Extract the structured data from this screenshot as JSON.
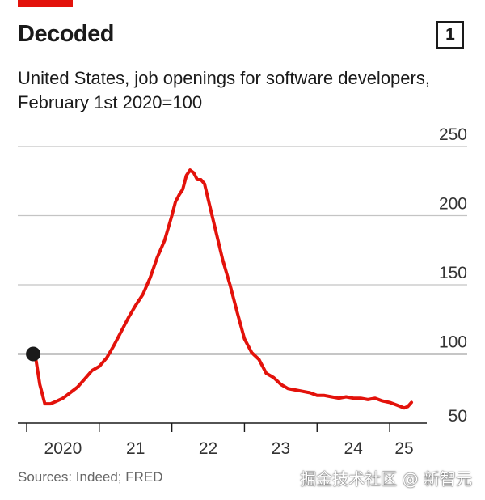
{
  "header": {
    "title": "Decoded",
    "badge": "1",
    "subtitle": "United States, job openings for software developers, February 1st 2020=100",
    "accent_color": "#e3120b"
  },
  "footer": {
    "source": "Sources: Indeed; FRED",
    "watermark": "掘金技术社区 @ 新智元"
  },
  "chart_data": {
    "type": "line",
    "title": "",
    "xlabel": "",
    "ylabel": "",
    "ylim": [
      50,
      250
    ],
    "yticks": [
      50,
      100,
      150,
      200,
      250
    ],
    "xticks": [
      {
        "label": "2020",
        "year": 2020.5
      },
      {
        "label": "21",
        "year": 2021.5
      },
      {
        "label": "22",
        "year": 2022.5
      },
      {
        "label": "23",
        "year": 2023.5
      },
      {
        "label": "24",
        "year": 2024.5
      },
      {
        "label": "25",
        "year": 2025.2
      }
    ],
    "reference_line": 100,
    "start_marker": {
      "year": 2020.09,
      "value": 100
    },
    "series": [
      {
        "color": "#e3120b",
        "x": [
          2020.09,
          2020.13,
          2020.18,
          2020.25,
          2020.33,
          2020.42,
          2020.5,
          2020.6,
          2020.7,
          2020.8,
          2020.9,
          2021.0,
          2021.1,
          2021.2,
          2021.3,
          2021.4,
          2021.5,
          2021.6,
          2021.7,
          2021.8,
          2021.9,
          2022.0,
          2022.05,
          2022.1,
          2022.15,
          2022.2,
          2022.25,
          2022.3,
          2022.35,
          2022.4,
          2022.45,
          2022.5,
          2022.6,
          2022.7,
          2022.8,
          2022.9,
          2023.0,
          2023.1,
          2023.2,
          2023.3,
          2023.4,
          2023.5,
          2023.6,
          2023.7,
          2023.8,
          2023.9,
          2024.0,
          2024.1,
          2024.2,
          2024.3,
          2024.4,
          2024.5,
          2024.6,
          2024.7,
          2024.8,
          2024.9,
          2025.0,
          2025.1,
          2025.2,
          2025.25,
          2025.3
        ],
        "values": [
          100,
          95,
          78,
          64,
          64,
          66,
          68,
          72,
          76,
          82,
          88,
          91,
          97,
          106,
          116,
          126,
          135,
          143,
          155,
          170,
          182,
          200,
          210,
          215,
          219,
          229,
          233,
          231,
          226,
          226,
          223,
          212,
          190,
          168,
          150,
          130,
          111,
          101,
          96,
          86,
          83,
          78,
          75,
          74,
          73,
          72,
          70,
          70,
          69,
          68,
          69,
          68,
          68,
          67,
          68,
          66,
          65,
          63,
          61,
          62,
          65
        ]
      }
    ]
  }
}
